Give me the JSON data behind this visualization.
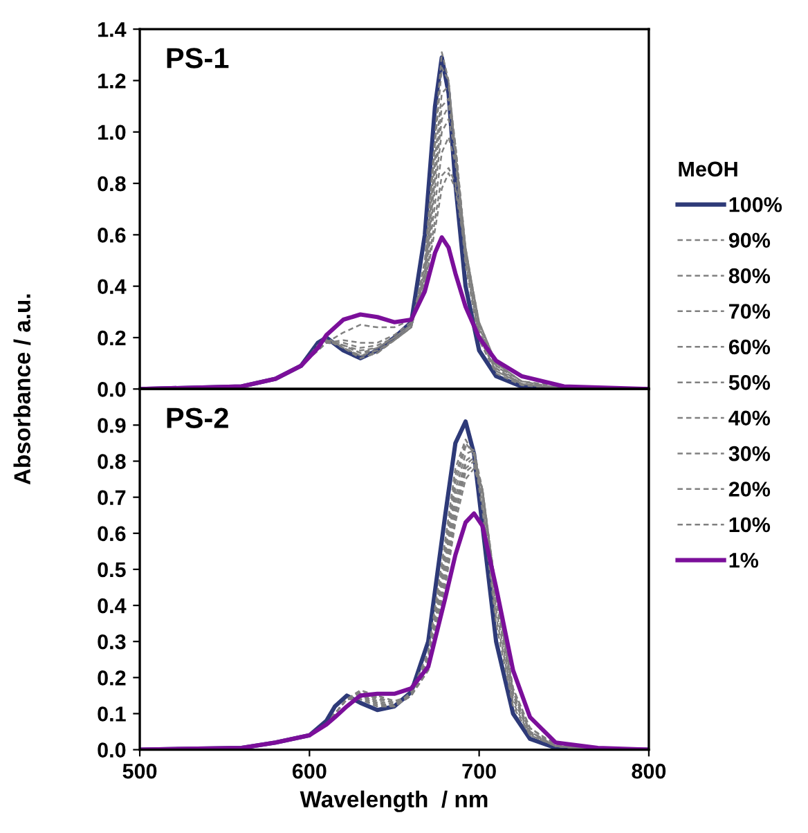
{
  "chart_data": [
    {
      "type": "line",
      "title": "PS-1",
      "ylabel": "Absorbance / a.u.",
      "legend_title": "MeOH",
      "legend": "right",
      "tick_labels": "y",
      "grid": false,
      "x": [
        500,
        560,
        580,
        595,
        605,
        610,
        620,
        630,
        640,
        650,
        660,
        668,
        674,
        678,
        682,
        686,
        692,
        700,
        710,
        725,
        750,
        800
      ],
      "xlim": [
        500,
        800
      ],
      "ylim": [
        0,
        1.4
      ],
      "yticks": [
        {
          "value": 0,
          "label": "0.0"
        },
        {
          "value": 0.2,
          "label": "0.2"
        },
        {
          "value": 0.4,
          "label": "0.4"
        },
        {
          "value": 0.6,
          "label": "0.6"
        },
        {
          "value": 0.8,
          "label": "0.8"
        },
        {
          "value": 1.0,
          "label": "1.0"
        },
        {
          "value": 1.2,
          "label": "1.2"
        },
        {
          "value": 1.4,
          "label": "1.4"
        }
      ],
      "series": [
        {
          "name": "100%",
          "color": "#2e3a78",
          "line_style": "solid",
          "values": [
            0,
            0.01,
            0.04,
            0.09,
            0.18,
            0.2,
            0.15,
            0.12,
            0.15,
            0.2,
            0.26,
            0.6,
            1.1,
            1.29,
            1.15,
            0.8,
            0.4,
            0.15,
            0.05,
            0.01,
            0,
            0
          ]
        },
        {
          "name": "90%",
          "color": "#808080",
          "line_style": "dashed",
          "values": [
            0,
            0.01,
            0.04,
            0.09,
            0.17,
            0.2,
            0.16,
            0.12,
            0.14,
            0.19,
            0.24,
            0.5,
            0.98,
            1.31,
            1.2,
            0.9,
            0.48,
            0.19,
            0.06,
            0.015,
            0,
            0
          ]
        },
        {
          "name": "80%",
          "color": "#808080",
          "line_style": "dashed",
          "values": [
            0,
            0.01,
            0.04,
            0.09,
            0.17,
            0.2,
            0.16,
            0.13,
            0.14,
            0.19,
            0.24,
            0.48,
            0.95,
            1.25,
            1.2,
            0.92,
            0.5,
            0.2,
            0.07,
            0.02,
            0,
            0
          ]
        },
        {
          "name": "70%",
          "color": "#808080",
          "line_style": "dashed",
          "values": [
            0,
            0.01,
            0.04,
            0.09,
            0.17,
            0.19,
            0.16,
            0.13,
            0.15,
            0.19,
            0.24,
            0.46,
            0.9,
            1.15,
            1.18,
            0.95,
            0.52,
            0.21,
            0.07,
            0.02,
            0,
            0
          ]
        },
        {
          "name": "60%",
          "color": "#808080",
          "line_style": "dashed",
          "values": [
            0,
            0.01,
            0.04,
            0.09,
            0.16,
            0.19,
            0.17,
            0.14,
            0.15,
            0.19,
            0.24,
            0.45,
            0.86,
            1.1,
            1.13,
            0.95,
            0.54,
            0.22,
            0.08,
            0.02,
            0,
            0
          ]
        },
        {
          "name": "50%",
          "color": "#808080",
          "line_style": "dashed",
          "values": [
            0,
            0.01,
            0.04,
            0.09,
            0.16,
            0.19,
            0.17,
            0.14,
            0.16,
            0.2,
            0.25,
            0.44,
            0.82,
            1.05,
            1.1,
            0.95,
            0.55,
            0.23,
            0.08,
            0.02,
            0,
            0
          ]
        },
        {
          "name": "40%",
          "color": "#808080",
          "line_style": "dashed",
          "values": [
            0,
            0.01,
            0.04,
            0.09,
            0.16,
            0.18,
            0.17,
            0.15,
            0.16,
            0.2,
            0.25,
            0.43,
            0.78,
            1.0,
            1.05,
            0.92,
            0.55,
            0.24,
            0.09,
            0.02,
            0,
            0
          ]
        },
        {
          "name": "30%",
          "color": "#808080",
          "line_style": "dashed",
          "values": [
            0,
            0.01,
            0.04,
            0.09,
            0.15,
            0.18,
            0.18,
            0.16,
            0.17,
            0.2,
            0.25,
            0.42,
            0.72,
            0.92,
            0.98,
            0.88,
            0.55,
            0.25,
            0.09,
            0.03,
            0,
            0
          ]
        },
        {
          "name": "20%",
          "color": "#808080",
          "line_style": "dashed",
          "values": [
            0,
            0.01,
            0.04,
            0.09,
            0.15,
            0.18,
            0.19,
            0.18,
            0.18,
            0.21,
            0.26,
            0.4,
            0.66,
            0.83,
            0.86,
            0.8,
            0.54,
            0.26,
            0.1,
            0.03,
            0,
            0
          ]
        },
        {
          "name": "10%",
          "color": "#808080",
          "line_style": "dashed",
          "values": [
            0,
            0.01,
            0.04,
            0.09,
            0.15,
            0.18,
            0.22,
            0.25,
            0.24,
            0.24,
            0.27,
            0.4,
            0.62,
            0.78,
            0.84,
            0.78,
            0.53,
            0.26,
            0.1,
            0.03,
            0.01,
            0
          ]
        },
        {
          "name": "1%",
          "color": "#7b0f9a",
          "line_style": "solid",
          "values": [
            0,
            0.01,
            0.04,
            0.09,
            0.16,
            0.21,
            0.27,
            0.29,
            0.28,
            0.26,
            0.27,
            0.38,
            0.53,
            0.59,
            0.55,
            0.45,
            0.32,
            0.2,
            0.11,
            0.05,
            0.01,
            0
          ]
        }
      ]
    },
    {
      "type": "line",
      "title": "PS-2",
      "xlabel": "Wavelength  / nm",
      "grid": false,
      "x": [
        500,
        560,
        580,
        600,
        610,
        615,
        622,
        630,
        640,
        650,
        660,
        670,
        680,
        686,
        692,
        697,
        702,
        710,
        720,
        730,
        745,
        770,
        800
      ],
      "xlim": [
        500,
        800
      ],
      "xticks": [
        500,
        600,
        700,
        800
      ],
      "ylim": [
        0,
        1.0
      ],
      "yticks": [
        {
          "value": 0,
          "label": "0.0"
        },
        {
          "value": 0.1,
          "label": "0.1"
        },
        {
          "value": 0.2,
          "label": "0.2"
        },
        {
          "value": 0.3,
          "label": "0.3"
        },
        {
          "value": 0.4,
          "label": "0.4"
        },
        {
          "value": 0.5,
          "label": "0.5"
        },
        {
          "value": 0.6,
          "label": "0.6"
        },
        {
          "value": 0.7,
          "label": "0.7"
        },
        {
          "value": 0.8,
          "label": "0.8"
        },
        {
          "value": 0.9,
          "label": "0.9"
        }
      ],
      "series": [
        {
          "color": "#2e3a78",
          "line_style": "solid",
          "values": [
            0,
            0.005,
            0.02,
            0.04,
            0.08,
            0.12,
            0.15,
            0.13,
            0.11,
            0.12,
            0.16,
            0.3,
            0.65,
            0.85,
            0.91,
            0.82,
            0.62,
            0.3,
            0.1,
            0.03,
            0.005,
            0,
            0
          ]
        },
        {
          "color": "#808080",
          "line_style": "dashed",
          "values": [
            0,
            0.005,
            0.02,
            0.04,
            0.07,
            0.1,
            0.14,
            0.14,
            0.12,
            0.12,
            0.16,
            0.27,
            0.58,
            0.78,
            0.86,
            0.82,
            0.66,
            0.35,
            0.12,
            0.04,
            0.01,
            0,
            0
          ]
        },
        {
          "color": "#808080",
          "line_style": "dashed",
          "values": [
            0,
            0.005,
            0.02,
            0.04,
            0.07,
            0.1,
            0.14,
            0.14,
            0.12,
            0.12,
            0.15,
            0.26,
            0.56,
            0.76,
            0.85,
            0.82,
            0.68,
            0.37,
            0.13,
            0.04,
            0.01,
            0,
            0
          ]
        },
        {
          "color": "#808080",
          "line_style": "dashed",
          "values": [
            0,
            0.005,
            0.02,
            0.04,
            0.07,
            0.1,
            0.14,
            0.145,
            0.125,
            0.12,
            0.15,
            0.25,
            0.54,
            0.74,
            0.84,
            0.83,
            0.7,
            0.39,
            0.14,
            0.045,
            0.01,
            0,
            0
          ]
        },
        {
          "color": "#808080",
          "line_style": "dashed",
          "values": [
            0,
            0.005,
            0.02,
            0.04,
            0.07,
            0.1,
            0.14,
            0.15,
            0.13,
            0.12,
            0.15,
            0.24,
            0.52,
            0.72,
            0.82,
            0.83,
            0.72,
            0.41,
            0.15,
            0.05,
            0.01,
            0,
            0
          ]
        },
        {
          "color": "#808080",
          "line_style": "dashed",
          "values": [
            0,
            0.005,
            0.02,
            0.04,
            0.07,
            0.1,
            0.14,
            0.15,
            0.13,
            0.12,
            0.15,
            0.24,
            0.5,
            0.7,
            0.8,
            0.82,
            0.72,
            0.42,
            0.15,
            0.05,
            0.01,
            0,
            0
          ]
        },
        {
          "color": "#808080",
          "line_style": "dashed",
          "values": [
            0,
            0.005,
            0.02,
            0.04,
            0.07,
            0.1,
            0.14,
            0.155,
            0.135,
            0.125,
            0.15,
            0.23,
            0.48,
            0.68,
            0.79,
            0.81,
            0.72,
            0.43,
            0.16,
            0.05,
            0.01,
            0,
            0
          ]
        },
        {
          "color": "#808080",
          "line_style": "dashed",
          "values": [
            0,
            0.005,
            0.02,
            0.04,
            0.07,
            0.1,
            0.14,
            0.16,
            0.14,
            0.13,
            0.15,
            0.23,
            0.47,
            0.66,
            0.78,
            0.8,
            0.72,
            0.44,
            0.16,
            0.05,
            0.01,
            0,
            0
          ]
        },
        {
          "color": "#808080",
          "line_style": "dashed",
          "values": [
            0,
            0.005,
            0.02,
            0.04,
            0.07,
            0.1,
            0.14,
            0.16,
            0.145,
            0.13,
            0.15,
            0.22,
            0.46,
            0.65,
            0.77,
            0.79,
            0.72,
            0.44,
            0.17,
            0.06,
            0.01,
            0,
            0
          ]
        },
        {
          "color": "#808080",
          "line_style": "dashed",
          "values": [
            0,
            0.005,
            0.02,
            0.04,
            0.07,
            0.1,
            0.14,
            0.165,
            0.15,
            0.135,
            0.15,
            0.22,
            0.45,
            0.63,
            0.75,
            0.78,
            0.71,
            0.44,
            0.17,
            0.06,
            0.015,
            0,
            0
          ]
        },
        {
          "color": "#7b0f9a",
          "line_style": "solid",
          "values": [
            0,
            0.005,
            0.02,
            0.04,
            0.07,
            0.09,
            0.12,
            0.15,
            0.155,
            0.155,
            0.17,
            0.23,
            0.42,
            0.54,
            0.63,
            0.655,
            0.62,
            0.45,
            0.22,
            0.09,
            0.02,
            0.005,
            0
          ]
        }
      ]
    }
  ]
}
